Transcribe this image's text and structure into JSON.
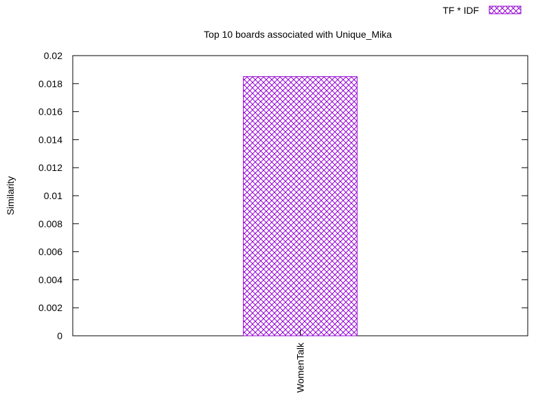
{
  "chart_data": {
    "type": "bar",
    "title": "Top 10 boards associated with Unique_Mika",
    "xlabel": "",
    "ylabel": "Similarity",
    "categories": [
      "WomenTalk"
    ],
    "series": [
      {
        "name": "TF * IDF",
        "values": [
          0.0185
        ],
        "color": "#9400d3",
        "fill_pattern": "crosshatch"
      }
    ],
    "ylim": [
      0,
      0.02
    ],
    "yticks": [
      "0",
      "0.002",
      "0.004",
      "0.006",
      "0.008",
      "0.01",
      "0.012",
      "0.014",
      "0.016",
      "0.018",
      "0.02"
    ],
    "grid": false,
    "legend_position": "top-right",
    "xtick_rotation": "vertical"
  }
}
